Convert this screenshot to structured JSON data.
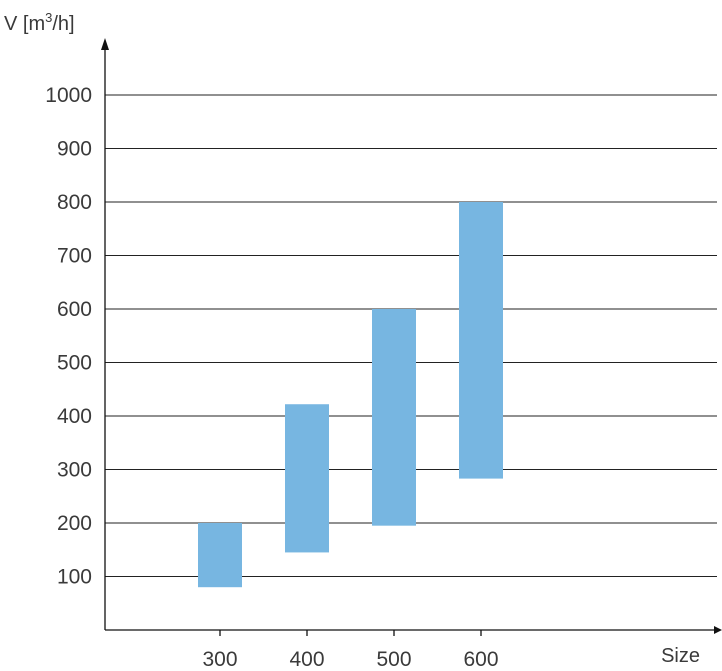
{
  "chart_data": {
    "type": "bar",
    "chart_subtype": "floating-range-bar",
    "ylabel_main": "V [m",
    "ylabel_sup": "3",
    "ylabel_end": "/h]",
    "xlabel": "Size",
    "categories": [
      "300",
      "400",
      "500",
      "600"
    ],
    "ranges": [
      {
        "low": 80,
        "high": 200
      },
      {
        "low": 145,
        "high": 422
      },
      {
        "low": 195,
        "high": 600
      },
      {
        "low": 283,
        "high": 800
      }
    ],
    "ylim": [
      0,
      1000
    ],
    "yticks": [
      100,
      200,
      300,
      400,
      500,
      600,
      700,
      800,
      900,
      1000
    ],
    "grid": true,
    "bar_color": "#77b6e1",
    "axis_color": "#111111"
  }
}
